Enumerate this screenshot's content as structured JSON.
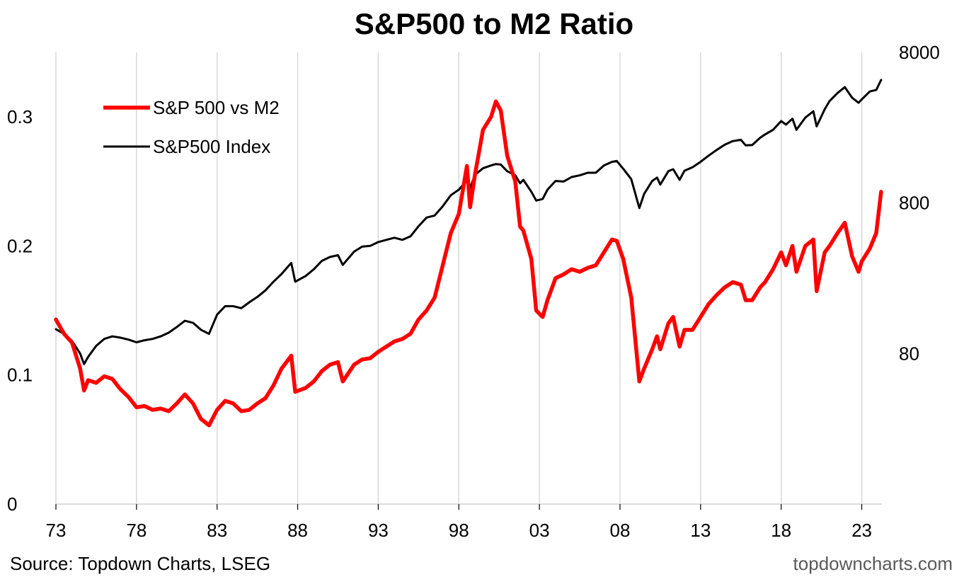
{
  "chart_data": {
    "type": "line",
    "title": "S&P500 to M2 Ratio",
    "source_note": "Source: Topdown Charts, LSEG",
    "watermark": "topdowncharts.com",
    "x_tick_labels": [
      "73",
      "78",
      "83",
      "88",
      "93",
      "98",
      "03",
      "08",
      "13",
      "18",
      "23"
    ],
    "x_tick_years": [
      1973,
      1978,
      1983,
      1988,
      1993,
      1998,
      2003,
      2008,
      2013,
      2018,
      2023
    ],
    "xlim": [
      1973,
      2024.25
    ],
    "left_axis": {
      "scale": "linear",
      "ylim": [
        0,
        0.35
      ],
      "ticks": [
        0,
        0.1,
        0.2,
        0.3
      ],
      "tick_labels": [
        "0",
        "0.1",
        "0.2",
        "0.3"
      ]
    },
    "right_axis": {
      "scale": "log",
      "ylim": [
        8,
        8000
      ],
      "ticks": [
        80,
        800,
        8000
      ],
      "tick_labels": [
        "80",
        "800",
        "8000"
      ]
    },
    "grid": {
      "vertical": true,
      "horizontal": false
    },
    "legend_position": "top-left",
    "series": [
      {
        "name": "S&P 500 vs M2",
        "axis": "left",
        "color": "#ff0000",
        "line_width": "thick",
        "points": [
          [
            1973.0,
            0.143
          ],
          [
            1973.5,
            0.132
          ],
          [
            1974.0,
            0.125
          ],
          [
            1974.5,
            0.105
          ],
          [
            1974.75,
            0.088
          ],
          [
            1975.0,
            0.096
          ],
          [
            1975.5,
            0.094
          ],
          [
            1976.0,
            0.099
          ],
          [
            1976.5,
            0.097
          ],
          [
            1977.0,
            0.089
          ],
          [
            1977.5,
            0.083
          ],
          [
            1978.0,
            0.075
          ],
          [
            1978.5,
            0.076
          ],
          [
            1979.0,
            0.073
          ],
          [
            1979.5,
            0.074
          ],
          [
            1980.0,
            0.072
          ],
          [
            1980.5,
            0.078
          ],
          [
            1981.0,
            0.085
          ],
          [
            1981.5,
            0.078
          ],
          [
            1982.0,
            0.066
          ],
          [
            1982.5,
            0.061
          ],
          [
            1983.0,
            0.073
          ],
          [
            1983.5,
            0.08
          ],
          [
            1984.0,
            0.078
          ],
          [
            1984.5,
            0.072
          ],
          [
            1985.0,
            0.073
          ],
          [
            1985.5,
            0.078
          ],
          [
            1986.0,
            0.082
          ],
          [
            1986.5,
            0.092
          ],
          [
            1987.0,
            0.105
          ],
          [
            1987.6,
            0.115
          ],
          [
            1987.85,
            0.087
          ],
          [
            1988.5,
            0.09
          ],
          [
            1989.0,
            0.095
          ],
          [
            1989.5,
            0.103
          ],
          [
            1990.0,
            0.108
          ],
          [
            1990.5,
            0.11
          ],
          [
            1990.8,
            0.095
          ],
          [
            1991.5,
            0.108
          ],
          [
            1992.0,
            0.112
          ],
          [
            1992.5,
            0.113
          ],
          [
            1993.0,
            0.118
          ],
          [
            1993.5,
            0.122
          ],
          [
            1994.0,
            0.126
          ],
          [
            1994.5,
            0.128
          ],
          [
            1995.0,
            0.132
          ],
          [
            1995.5,
            0.143
          ],
          [
            1996.0,
            0.15
          ],
          [
            1996.5,
            0.16
          ],
          [
            1997.0,
            0.185
          ],
          [
            1997.5,
            0.21
          ],
          [
            1998.0,
            0.225
          ],
          [
            1998.5,
            0.262
          ],
          [
            1998.7,
            0.23
          ],
          [
            1999.0,
            0.255
          ],
          [
            1999.5,
            0.29
          ],
          [
            2000.0,
            0.3
          ],
          [
            2000.3,
            0.312
          ],
          [
            2000.6,
            0.305
          ],
          [
            2001.0,
            0.27
          ],
          [
            2001.5,
            0.25
          ],
          [
            2001.8,
            0.215
          ],
          [
            2002.0,
            0.212
          ],
          [
            2002.5,
            0.19
          ],
          [
            2002.8,
            0.15
          ],
          [
            2003.2,
            0.145
          ],
          [
            2003.5,
            0.158
          ],
          [
            2004.0,
            0.175
          ],
          [
            2004.5,
            0.178
          ],
          [
            2005.0,
            0.182
          ],
          [
            2005.5,
            0.18
          ],
          [
            2006.0,
            0.183
          ],
          [
            2006.5,
            0.185
          ],
          [
            2007.0,
            0.195
          ],
          [
            2007.5,
            0.205
          ],
          [
            2007.8,
            0.204
          ],
          [
            2008.2,
            0.19
          ],
          [
            2008.7,
            0.16
          ],
          [
            2009.2,
            0.095
          ],
          [
            2009.5,
            0.105
          ],
          [
            2010.0,
            0.12
          ],
          [
            2010.3,
            0.13
          ],
          [
            2010.5,
            0.12
          ],
          [
            2011.0,
            0.14
          ],
          [
            2011.3,
            0.145
          ],
          [
            2011.7,
            0.122
          ],
          [
            2012.0,
            0.135
          ],
          [
            2012.5,
            0.135
          ],
          [
            2013.0,
            0.145
          ],
          [
            2013.5,
            0.155
          ],
          [
            2014.0,
            0.162
          ],
          [
            2014.5,
            0.168
          ],
          [
            2015.0,
            0.172
          ],
          [
            2015.5,
            0.17
          ],
          [
            2015.8,
            0.158
          ],
          [
            2016.2,
            0.158
          ],
          [
            2016.7,
            0.168
          ],
          [
            2017.0,
            0.172
          ],
          [
            2017.5,
            0.182
          ],
          [
            2018.0,
            0.195
          ],
          [
            2018.3,
            0.185
          ],
          [
            2018.7,
            0.2
          ],
          [
            2018.95,
            0.18
          ],
          [
            2019.5,
            0.2
          ],
          [
            2020.0,
            0.205
          ],
          [
            2020.2,
            0.165
          ],
          [
            2020.7,
            0.195
          ],
          [
            2021.0,
            0.2
          ],
          [
            2021.5,
            0.21
          ],
          [
            2021.95,
            0.218
          ],
          [
            2022.4,
            0.192
          ],
          [
            2022.8,
            0.18
          ],
          [
            2023.0,
            0.188
          ],
          [
            2023.5,
            0.198
          ],
          [
            2023.9,
            0.21
          ],
          [
            2024.2,
            0.242
          ]
        ]
      },
      {
        "name": "S&P500 Index",
        "axis": "right",
        "color": "#000000",
        "line_width": "thin",
        "points": [
          [
            1973.0,
            116
          ],
          [
            1973.5,
            108
          ],
          [
            1974.0,
            97
          ],
          [
            1974.5,
            80
          ],
          [
            1974.75,
            68
          ],
          [
            1975.0,
            76
          ],
          [
            1975.5,
            90
          ],
          [
            1976.0,
            100
          ],
          [
            1976.5,
            104
          ],
          [
            1977.0,
            102
          ],
          [
            1977.5,
            99
          ],
          [
            1978.0,
            95
          ],
          [
            1978.5,
            98
          ],
          [
            1979.0,
            100
          ],
          [
            1979.5,
            104
          ],
          [
            1980.0,
            110
          ],
          [
            1980.5,
            120
          ],
          [
            1981.0,
            132
          ],
          [
            1981.5,
            128
          ],
          [
            1982.0,
            115
          ],
          [
            1982.5,
            108
          ],
          [
            1983.0,
            145
          ],
          [
            1983.5,
            165
          ],
          [
            1984.0,
            165
          ],
          [
            1984.5,
            160
          ],
          [
            1985.0,
            175
          ],
          [
            1985.5,
            190
          ],
          [
            1986.0,
            210
          ],
          [
            1986.5,
            240
          ],
          [
            1987.0,
            270
          ],
          [
            1987.6,
            320
          ],
          [
            1987.85,
            240
          ],
          [
            1988.5,
            262
          ],
          [
            1989.0,
            290
          ],
          [
            1989.5,
            330
          ],
          [
            1990.0,
            350
          ],
          [
            1990.5,
            360
          ],
          [
            1990.8,
            310
          ],
          [
            1991.5,
            380
          ],
          [
            1992.0,
            410
          ],
          [
            1992.5,
            415
          ],
          [
            1993.0,
            440
          ],
          [
            1993.5,
            455
          ],
          [
            1994.0,
            470
          ],
          [
            1994.5,
            455
          ],
          [
            1995.0,
            480
          ],
          [
            1995.5,
            560
          ],
          [
            1996.0,
            640
          ],
          [
            1996.5,
            660
          ],
          [
            1997.0,
            760
          ],
          [
            1997.5,
            900
          ],
          [
            1998.0,
            980
          ],
          [
            1998.5,
            1130
          ],
          [
            1998.7,
            1000
          ],
          [
            1999.0,
            1230
          ],
          [
            1999.5,
            1360
          ],
          [
            2000.0,
            1420
          ],
          [
            2000.3,
            1450
          ],
          [
            2000.6,
            1440
          ],
          [
            2001.0,
            1300
          ],
          [
            2001.5,
            1220
          ],
          [
            2001.8,
            1080
          ],
          [
            2002.0,
            1140
          ],
          [
            2002.5,
            950
          ],
          [
            2002.8,
            830
          ],
          [
            2003.2,
            850
          ],
          [
            2003.5,
            980
          ],
          [
            2004.0,
            1120
          ],
          [
            2004.5,
            1110
          ],
          [
            2005.0,
            1190
          ],
          [
            2005.5,
            1220
          ],
          [
            2006.0,
            1270
          ],
          [
            2006.5,
            1270
          ],
          [
            2007.0,
            1420
          ],
          [
            2007.5,
            1500
          ],
          [
            2007.8,
            1520
          ],
          [
            2008.2,
            1350
          ],
          [
            2008.7,
            1150
          ],
          [
            2009.2,
            740
          ],
          [
            2009.5,
            920
          ],
          [
            2010.0,
            1120
          ],
          [
            2010.3,
            1180
          ],
          [
            2010.5,
            1060
          ],
          [
            2011.0,
            1300
          ],
          [
            2011.3,
            1340
          ],
          [
            2011.7,
            1140
          ],
          [
            2012.0,
            1310
          ],
          [
            2012.5,
            1380
          ],
          [
            2013.0,
            1500
          ],
          [
            2013.5,
            1650
          ],
          [
            2014.0,
            1800
          ],
          [
            2014.5,
            1950
          ],
          [
            2015.0,
            2060
          ],
          [
            2015.5,
            2100
          ],
          [
            2015.8,
            1930
          ],
          [
            2016.2,
            1940
          ],
          [
            2016.7,
            2170
          ],
          [
            2017.0,
            2280
          ],
          [
            2017.5,
            2450
          ],
          [
            2018.0,
            2800
          ],
          [
            2018.3,
            2650
          ],
          [
            2018.7,
            2900
          ],
          [
            2018.95,
            2450
          ],
          [
            2019.5,
            2950
          ],
          [
            2020.0,
            3250
          ],
          [
            2020.2,
            2580
          ],
          [
            2020.7,
            3350
          ],
          [
            2021.0,
            3800
          ],
          [
            2021.5,
            4300
          ],
          [
            2021.95,
            4700
          ],
          [
            2022.4,
            4000
          ],
          [
            2022.8,
            3700
          ],
          [
            2023.0,
            3900
          ],
          [
            2023.5,
            4400
          ],
          [
            2023.9,
            4500
          ],
          [
            2024.2,
            5250
          ]
        ]
      }
    ]
  }
}
